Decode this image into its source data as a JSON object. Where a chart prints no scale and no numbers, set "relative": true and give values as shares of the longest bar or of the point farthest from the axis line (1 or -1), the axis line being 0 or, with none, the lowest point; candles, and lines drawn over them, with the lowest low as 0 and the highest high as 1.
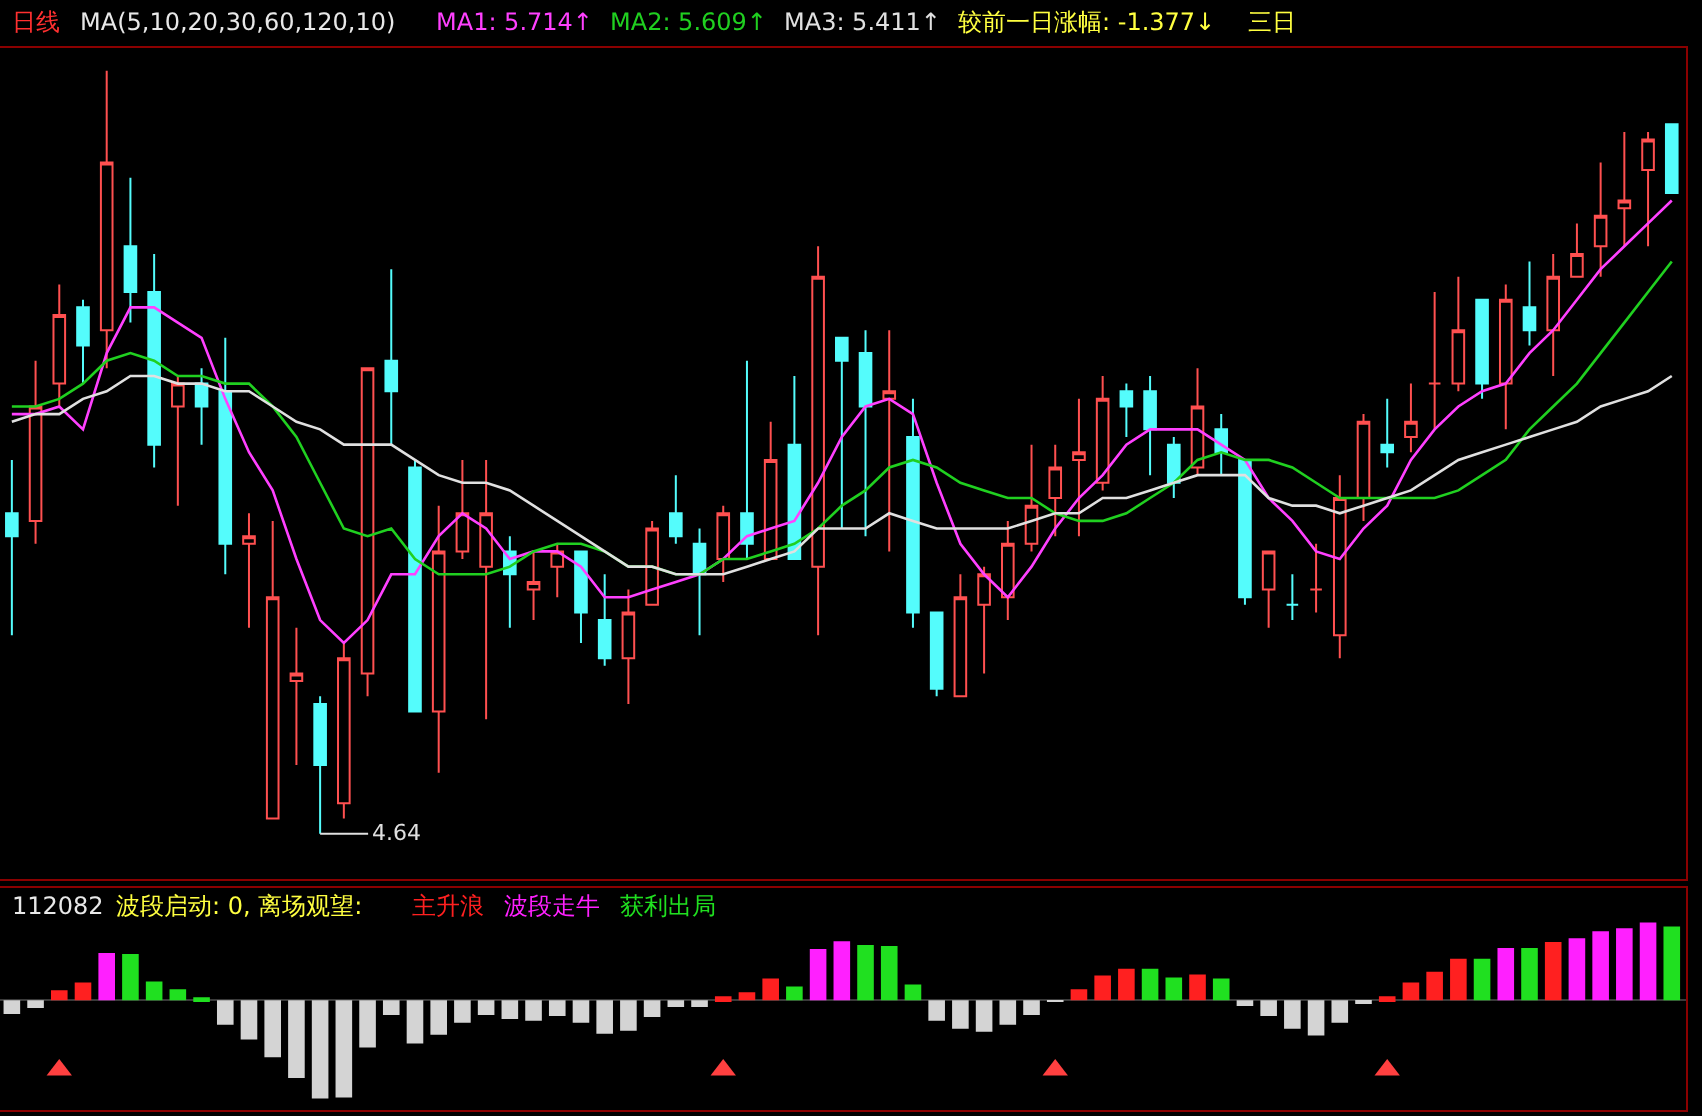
{
  "chart_data": [
    {
      "type": "candlestick",
      "title": "日线",
      "subtitle": "MA(5,10,20,30,60,120,10)",
      "relative": true,
      "categories": [
        null,
        null,
        null,
        null,
        null,
        null,
        null,
        null,
        null,
        null,
        null,
        null,
        null,
        null,
        null,
        null,
        null,
        null,
        null,
        null,
        null,
        null,
        null,
        null,
        null,
        null,
        null,
        null,
        null,
        null,
        null,
        null,
        null,
        null,
        null,
        null,
        null,
        null,
        null,
        null,
        null,
        null,
        null,
        null,
        null,
        null,
        null,
        null,
        null,
        null,
        null,
        null,
        null,
        null,
        null,
        null,
        null,
        null,
        null,
        null,
        null,
        null,
        null,
        null,
        null,
        null,
        null,
        null,
        null,
        null,
        null
      ],
      "ohlc": [
        [
          0.42,
          0.49,
          0.26,
          0.39
        ],
        [
          0.41,
          0.62,
          0.38,
          0.56
        ],
        [
          0.59,
          0.72,
          0.56,
          0.68
        ],
        [
          0.69,
          0.7,
          0.59,
          0.64
        ],
        [
          0.66,
          1.0,
          0.61,
          0.88
        ],
        [
          0.77,
          0.86,
          0.67,
          0.71
        ],
        [
          0.71,
          0.76,
          0.48,
          0.51
        ],
        [
          0.56,
          0.6,
          0.43,
          0.59
        ],
        [
          0.59,
          0.61,
          0.51,
          0.56
        ],
        [
          0.58,
          0.65,
          0.34,
          0.38
        ],
        [
          0.38,
          0.42,
          0.27,
          0.39
        ],
        [
          0.02,
          0.41,
          0.02,
          0.31
        ],
        [
          0.2,
          0.27,
          0.09,
          0.21
        ],
        [
          0.17,
          0.18,
          0,
          0.09
        ],
        [
          0.04,
          0.25,
          0.02,
          0.23
        ],
        [
          0.21,
          0.61,
          0.18,
          0.61
        ],
        [
          0.62,
          0.74,
          0.51,
          0.58
        ],
        [
          0.48,
          0.49,
          0.16,
          0.16
        ],
        [
          0.16,
          0.43,
          0.08,
          0.37
        ],
        [
          0.37,
          0.49,
          0.36,
          0.42
        ],
        [
          0.35,
          0.49,
          0.15,
          0.42
        ],
        [
          0.37,
          0.39,
          0.27,
          0.34
        ],
        [
          0.32,
          0.37,
          0.28,
          0.33
        ],
        [
          0.35,
          0.38,
          0.31,
          0.37
        ],
        [
          0.37,
          0.37,
          0.25,
          0.29
        ],
        [
          0.28,
          0.34,
          0.22,
          0.23
        ],
        [
          0.23,
          0.32,
          0.17,
          0.29
        ],
        [
          0.3,
          0.41,
          0.3,
          0.4
        ],
        [
          0.42,
          0.47,
          0.38,
          0.39
        ],
        [
          0.38,
          0.4,
          0.26,
          0.34
        ],
        [
          0.36,
          0.43,
          0.33,
          0.42
        ],
        [
          0.42,
          0.62,
          0.36,
          0.38
        ],
        [
          0.36,
          0.54,
          0.36,
          0.49
        ],
        [
          0.51,
          0.6,
          0.36,
          0.36
        ],
        [
          0.35,
          0.77,
          0.26,
          0.73
        ],
        [
          0.65,
          0.65,
          0.4,
          0.62
        ],
        [
          0.63,
          0.66,
          0.39,
          0.56
        ],
        [
          0.57,
          0.66,
          0.37,
          0.58
        ],
        [
          0.52,
          0.57,
          0.27,
          0.29
        ],
        [
          0.29,
          0.29,
          0.18,
          0.19
        ],
        [
          0.18,
          0.34,
          0.18,
          0.31
        ],
        [
          0.3,
          0.35,
          0.21,
          0.34
        ],
        [
          0.31,
          0.41,
          0.28,
          0.38
        ],
        [
          0.38,
          0.51,
          0.37,
          0.43
        ],
        [
          0.44,
          0.51,
          0.39,
          0.48
        ],
        [
          0.49,
          0.57,
          0.39,
          0.5
        ],
        [
          0.46,
          0.6,
          0.45,
          0.57
        ],
        [
          0.58,
          0.59,
          0.52,
          0.56
        ],
        [
          0.58,
          0.6,
          0.47,
          0.53
        ],
        [
          0.51,
          0.52,
          0.44,
          0.46
        ],
        [
          0.48,
          0.61,
          0.47,
          0.56
        ],
        [
          0.53,
          0.55,
          0.47,
          0.5
        ],
        [
          0.49,
          0.49,
          0.3,
          0.31
        ],
        [
          0.32,
          0.37,
          0.27,
          0.37
        ],
        [
          0.3,
          0.34,
          0.28,
          0.3
        ],
        [
          0.32,
          0.38,
          0.29,
          0.32
        ],
        [
          0.26,
          0.47,
          0.23,
          0.44
        ],
        [
          0.44,
          0.55,
          0.41,
          0.54
        ],
        [
          0.51,
          0.57,
          0.48,
          0.5
        ],
        [
          0.52,
          0.59,
          0.5,
          0.54
        ],
        [
          0.59,
          0.71,
          0.53,
          0.59
        ],
        [
          0.59,
          0.73,
          0.58,
          0.66
        ],
        [
          0.7,
          0.7,
          0.57,
          0.59
        ],
        [
          0.59,
          0.72,
          0.53,
          0.7
        ],
        [
          0.69,
          0.75,
          0.64,
          0.66
        ],
        [
          0.66,
          0.76,
          0.6,
          0.73
        ],
        [
          0.73,
          0.8,
          0.73,
          0.76
        ],
        [
          0.77,
          0.88,
          0.73,
          0.81
        ],
        [
          0.82,
          0.92,
          0.77,
          0.83
        ],
        [
          0.87,
          0.92,
          0.77,
          0.91
        ],
        [
          0.93,
          0.93,
          0.84,
          0.84
        ]
      ],
      "series": [
        {
          "type": "line",
          "name": "MA1: 5.714↑",
          "color": "#ff40ff",
          "values": [
            0.55,
            0.55,
            0.56,
            0.53,
            0.63,
            0.69,
            0.69,
            0.67,
            0.65,
            0.57,
            0.5,
            0.45,
            0.36,
            0.28,
            0.25,
            0.28,
            0.34,
            0.34,
            0.39,
            0.42,
            0.4,
            0.36,
            0.37,
            0.37,
            0.35,
            0.31,
            0.31,
            0.32,
            0.33,
            0.34,
            0.36,
            0.39,
            0.4,
            0.41,
            0.46,
            0.52,
            0.56,
            0.57,
            0.55,
            0.46,
            0.38,
            0.34,
            0.31,
            0.35,
            0.4,
            0.44,
            0.47,
            0.51,
            0.53,
            0.53,
            0.53,
            0.51,
            0.49,
            0.44,
            0.41,
            0.37,
            0.36,
            0.4,
            0.43,
            0.49,
            0.53,
            0.56,
            0.58,
            0.59,
            0.63,
            0.66,
            0.7,
            0.74,
            0.77,
            0.8,
            0.83
          ]
        },
        {
          "type": "line",
          "name": "MA2: 5.609↑",
          "color": "#20d020",
          "values": [
            0.56,
            0.56,
            0.57,
            0.59,
            0.62,
            0.63,
            0.62,
            0.6,
            0.6,
            0.59,
            0.59,
            0.56,
            0.52,
            0.46,
            0.4,
            0.39,
            0.4,
            0.36,
            0.34,
            0.34,
            0.34,
            0.35,
            0.37,
            0.38,
            0.38,
            0.37,
            0.35,
            0.35,
            0.34,
            0.34,
            0.36,
            0.36,
            0.37,
            0.38,
            0.4,
            0.43,
            0.45,
            0.48,
            0.49,
            0.48,
            0.46,
            0.45,
            0.44,
            0.44,
            0.42,
            0.41,
            0.41,
            0.42,
            0.44,
            0.46,
            0.49,
            0.5,
            0.49,
            0.49,
            0.48,
            0.46,
            0.44,
            0.44,
            0.44,
            0.44,
            0.44,
            0.45,
            0.47,
            0.49,
            0.53,
            0.56,
            0.59,
            0.63,
            0.67,
            0.71,
            0.75
          ]
        },
        {
          "type": "line",
          "name": "MA3: 5.411↑",
          "color": "#e0e0e0",
          "values": [
            0.54,
            0.55,
            0.55,
            0.57,
            0.58,
            0.6,
            0.6,
            0.59,
            0.59,
            0.58,
            0.58,
            0.56,
            0.54,
            0.53,
            0.51,
            0.51,
            0.51,
            0.49,
            0.47,
            0.46,
            0.46,
            0.45,
            0.43,
            0.41,
            0.39,
            0.37,
            0.35,
            0.35,
            0.34,
            0.34,
            0.34,
            0.35,
            0.36,
            0.37,
            0.4,
            0.4,
            0.4,
            0.42,
            0.41,
            0.4,
            0.4,
            0.4,
            0.4,
            0.41,
            0.42,
            0.42,
            0.44,
            0.44,
            0.45,
            0.46,
            0.47,
            0.47,
            0.47,
            0.44,
            0.43,
            0.43,
            0.42,
            0.43,
            0.44,
            0.45,
            0.47,
            0.49,
            0.5,
            0.51,
            0.52,
            0.53,
            0.54,
            0.56,
            0.57,
            0.58,
            0.6
          ]
        }
      ],
      "annotations": [
        "较前一日涨幅: -1.377↓",
        "三日",
        "4.64"
      ]
    },
    {
      "type": "bar",
      "title": "112082",
      "subtitle": "波段启动: 0, 离场观望:",
      "relative": true,
      "categories": [
        null,
        null,
        null,
        null,
        null,
        null,
        null,
        null,
        null,
        null,
        null,
        null,
        null,
        null,
        null,
        null,
        null,
        null,
        null,
        null,
        null,
        null,
        null,
        null,
        null,
        null,
        null,
        null,
        null,
        null,
        null,
        null,
        null,
        null,
        null,
        null,
        null,
        null,
        null,
        null,
        null,
        null,
        null,
        null,
        null,
        null,
        null,
        null,
        null,
        null,
        null,
        null,
        null,
        null,
        null,
        null,
        null,
        null,
        null,
        null,
        null,
        null,
        null,
        null,
        null,
        null,
        null,
        null,
        null,
        null,
        null
      ],
      "series": [
        {
          "color": "#d4d4d4",
          "values": [
            -0.14,
            -0.08,
            null,
            null,
            null,
            null,
            null,
            null,
            null,
            -0.25,
            -0.4,
            -0.58,
            -0.79,
            -1,
            -0.99,
            -0.48,
            -0.15,
            -0.44,
            -0.35,
            -0.23,
            -0.15,
            -0.19,
            -0.21,
            -0.16,
            -0.23,
            -0.34,
            -0.31,
            -0.17,
            -0.07,
            -0.07,
            null,
            null,
            null,
            null,
            null,
            null,
            null,
            null,
            null,
            -0.21,
            -0.29,
            -0.32,
            -0.25,
            -0.15,
            -0.01,
            null,
            null,
            null,
            null,
            null,
            null,
            null,
            -0.06,
            -0.16,
            -0.29,
            -0.36,
            -0.23,
            -0.03,
            null,
            null,
            null,
            null,
            null,
            null,
            null,
            null,
            null,
            null,
            null,
            null,
            null
          ]
        },
        {
          "name": "主升浪",
          "color": "#ff2020",
          "values": [
            null,
            null,
            0.1,
            0.18,
            null,
            null,
            null,
            null,
            null,
            null,
            null,
            null,
            null,
            null,
            null,
            null,
            null,
            null,
            null,
            null,
            null,
            null,
            null,
            null,
            null,
            null,
            null,
            null,
            null,
            null,
            0.04,
            0.08,
            0.22,
            null,
            null,
            null,
            null,
            null,
            null,
            null,
            null,
            null,
            null,
            null,
            null,
            0.11,
            0.25,
            0.32,
            null,
            null,
            0.26,
            null,
            null,
            null,
            null,
            null,
            null,
            null,
            0.04,
            0.18,
            0.29,
            0.42,
            null,
            null,
            null,
            0.59,
            null,
            null,
            null,
            null,
            null
          ]
        },
        {
          "name": "波段走牛",
          "color": "#ff20ff",
          "values": [
            null,
            null,
            null,
            null,
            0.48,
            null,
            null,
            null,
            null,
            null,
            null,
            null,
            null,
            null,
            null,
            null,
            null,
            null,
            null,
            null,
            null,
            null,
            null,
            null,
            null,
            null,
            null,
            null,
            null,
            null,
            null,
            null,
            null,
            null,
            0.52,
            0.6,
            null,
            null,
            null,
            null,
            null,
            null,
            null,
            null,
            null,
            null,
            null,
            null,
            null,
            null,
            null,
            null,
            null,
            null,
            null,
            null,
            null,
            null,
            null,
            null,
            null,
            null,
            null,
            0.53,
            null,
            null,
            0.63,
            0.7,
            0.73,
            0.79,
            null
          ]
        },
        {
          "name": "获利出局",
          "color": "#20e020",
          "values": [
            null,
            null,
            null,
            null,
            null,
            0.47,
            0.19,
            0.11,
            0.03,
            null,
            null,
            null,
            null,
            null,
            null,
            null,
            null,
            null,
            null,
            null,
            null,
            null,
            null,
            null,
            null,
            null,
            null,
            null,
            null,
            null,
            null,
            null,
            null,
            0.14,
            null,
            null,
            0.56,
            0.55,
            0.16,
            null,
            null,
            null,
            null,
            null,
            null,
            null,
            null,
            null,
            0.32,
            0.23,
            null,
            0.22,
            null,
            null,
            null,
            null,
            null,
            null,
            null,
            null,
            null,
            null,
            0.42,
            null,
            0.53,
            null,
            null,
            null,
            null,
            null,
            0.75
          ]
        },
        {
          "type": "scatter",
          "marker": "triangle",
          "color": "#ff4040",
          "values": [
            null,
            null,
            -0.71,
            null,
            null,
            null,
            null,
            null,
            null,
            null,
            null,
            null,
            null,
            null,
            null,
            null,
            null,
            null,
            null,
            null,
            null,
            null,
            null,
            null,
            null,
            null,
            null,
            null,
            null,
            null,
            -0.71,
            null,
            null,
            null,
            null,
            null,
            null,
            null,
            null,
            null,
            null,
            null,
            null,
            null,
            -0.71,
            null,
            null,
            null,
            null,
            null,
            null,
            null,
            null,
            null,
            null,
            null,
            null,
            null,
            -0.71,
            null,
            null,
            null,
            null,
            null,
            null,
            null,
            null,
            null,
            null,
            null,
            null
          ]
        }
      ]
    }
  ]
}
